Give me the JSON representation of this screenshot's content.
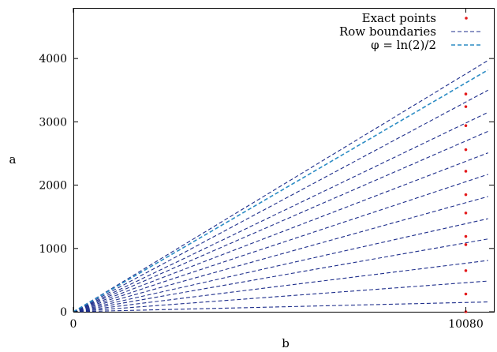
{
  "chart_data": {
    "type": "line",
    "xlabel": "b",
    "ylabel": "a",
    "xlim": [
      0,
      10800
    ],
    "ylim": [
      0,
      4800
    ],
    "x_ticks": [
      {
        "value": 0,
        "label": "0"
      },
      {
        "value": 10080,
        "label": "10080"
      }
    ],
    "y_ticks": [
      {
        "value": 0,
        "label": "0"
      },
      {
        "value": 1000,
        "label": "1000"
      },
      {
        "value": 2000,
        "label": "2000"
      },
      {
        "value": 3000,
        "label": "3000"
      },
      {
        "value": 4000,
        "label": "4000"
      }
    ],
    "legend": {
      "placement": "top-right",
      "entries": [
        {
          "label": "Exact points",
          "style": "dots",
          "color": "#e41a1c"
        },
        {
          "label": "Row boundaries",
          "style": "dashed",
          "color": "#1f2f8c"
        },
        {
          "label": "φ = ln(2)/2",
          "style": "dashed",
          "color": "#2b8cc4"
        }
      ]
    },
    "series": [
      {
        "name": "Row boundaries",
        "style": "dashed",
        "color": "#1f2f8c",
        "lines_through_origin": [
          {
            "x_end": 10650,
            "y_end": 155
          },
          {
            "x_end": 10650,
            "y_end": 485
          },
          {
            "x_end": 10650,
            "y_end": 810
          },
          {
            "x_end": 10650,
            "y_end": 1150
          },
          {
            "x_end": 10650,
            "y_end": 1470
          },
          {
            "x_end": 10650,
            "y_end": 1820
          },
          {
            "x_end": 10650,
            "y_end": 2170
          },
          {
            "x_end": 10650,
            "y_end": 2510
          },
          {
            "x_end": 10650,
            "y_end": 2850
          },
          {
            "x_end": 10650,
            "y_end": 3150
          },
          {
            "x_end": 10650,
            "y_end": 3500
          },
          {
            "x_end": 10650,
            "y_end": 3970
          }
        ]
      },
      {
        "name": "φ = ln(2)/2",
        "style": "dashed",
        "color": "#2b8cc4",
        "lines_through_origin": [
          {
            "x_end": 10650,
            "y_end": 3820
          }
        ]
      },
      {
        "name": "Exact points",
        "style": "dots",
        "color": "#e41a1c",
        "points": [
          {
            "x": 10080,
            "y": 0
          },
          {
            "x": 10080,
            "y": 280
          },
          {
            "x": 10080,
            "y": 650
          },
          {
            "x": 10080,
            "y": 1060
          },
          {
            "x": 10080,
            "y": 1190
          },
          {
            "x": 10080,
            "y": 1560
          },
          {
            "x": 10080,
            "y": 1850
          },
          {
            "x": 10080,
            "y": 2220
          },
          {
            "x": 10080,
            "y": 2560
          },
          {
            "x": 10080,
            "y": 2940
          },
          {
            "x": 10080,
            "y": 3240
          },
          {
            "x": 10080,
            "y": 3440
          }
        ]
      }
    ]
  }
}
